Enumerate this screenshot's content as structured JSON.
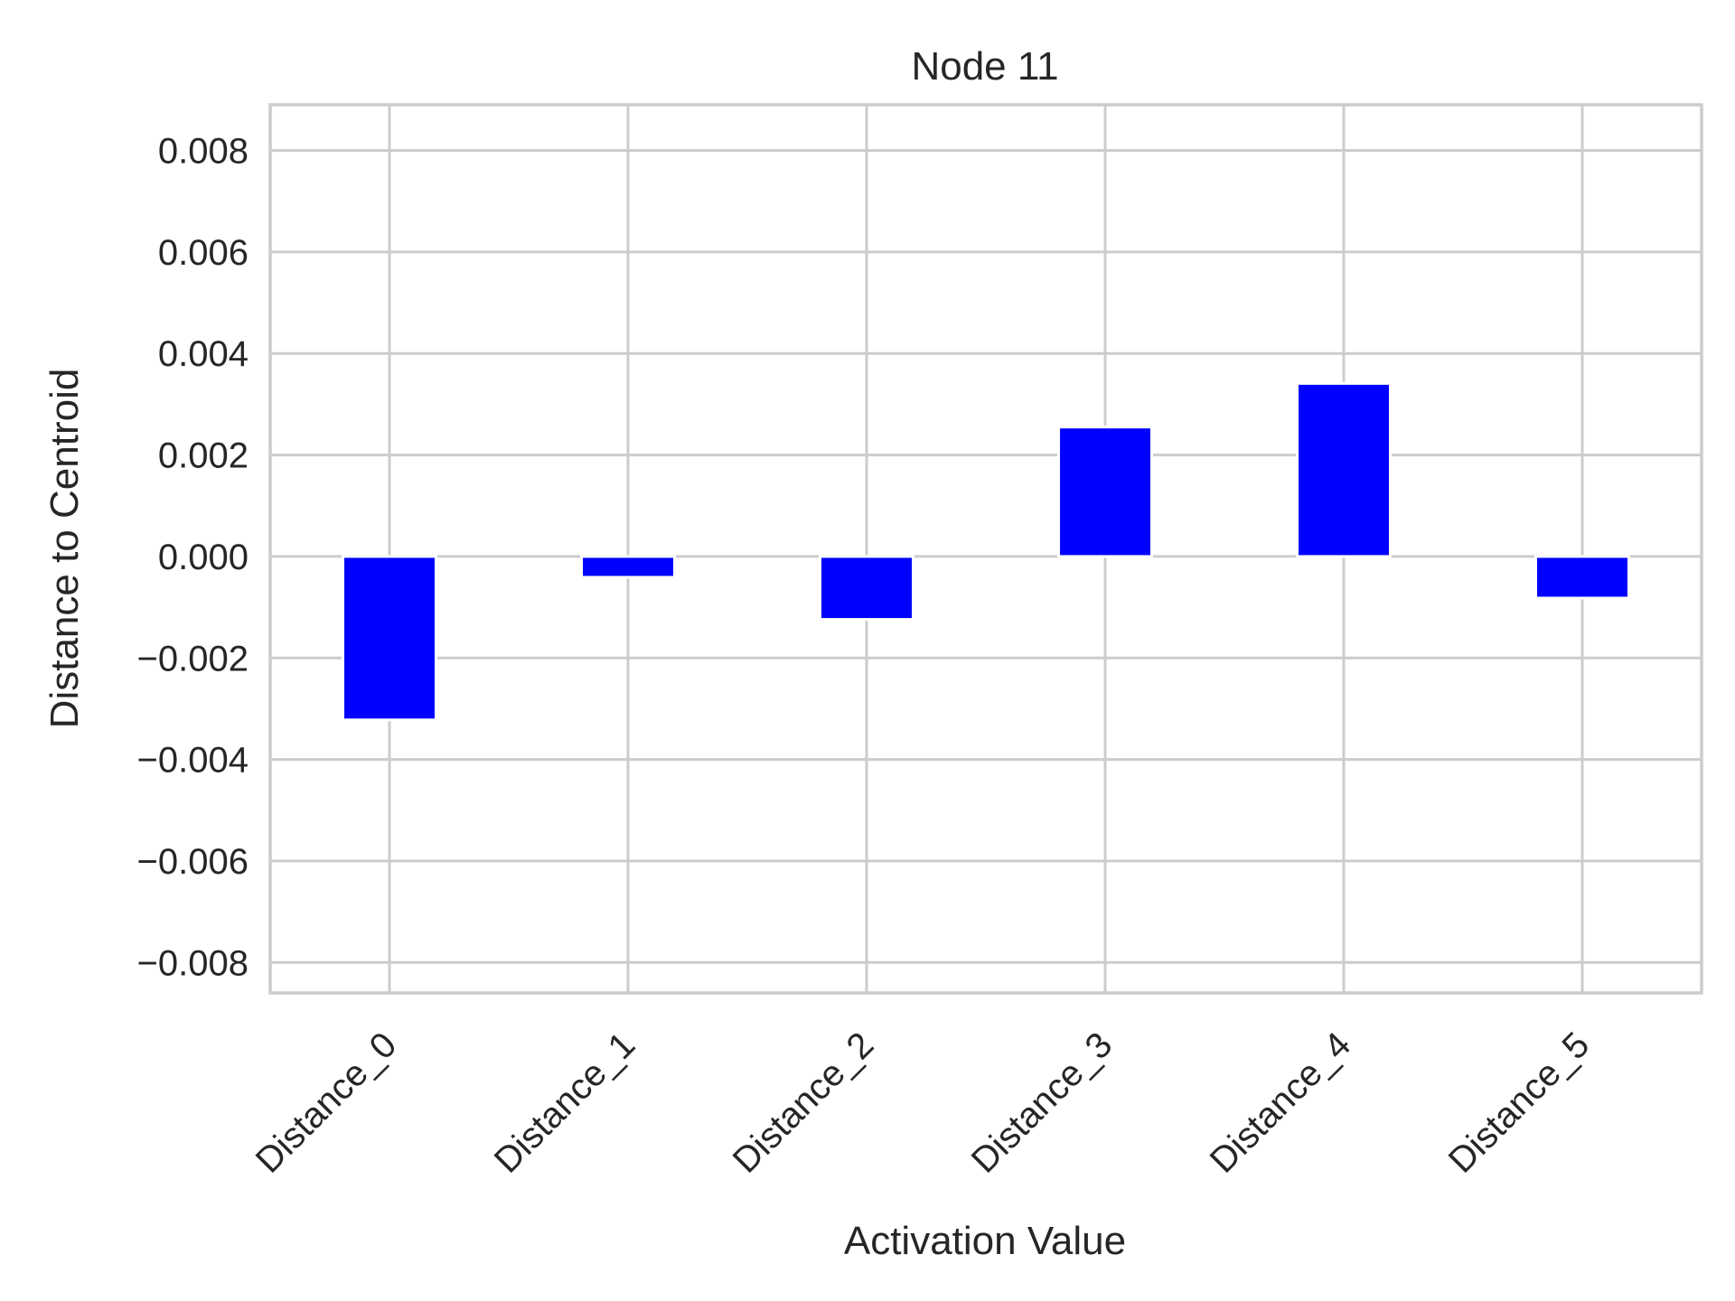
{
  "chart_data": {
    "type": "bar",
    "title": "Node 11",
    "xlabel": "Activation Value",
    "ylabel": "Distance to Centroid",
    "categories": [
      "Distance_0",
      "Distance_1",
      "Distance_2",
      "Distance_3",
      "Distance_4",
      "Distance_5"
    ],
    "values": [
      -0.00322,
      -0.00041,
      -0.00124,
      0.00255,
      0.00341,
      -0.00082
    ],
    "ylim": [
      -0.0086,
      0.0089
    ],
    "yticks": [
      -0.008,
      -0.006,
      -0.004,
      -0.002,
      0.0,
      0.002,
      0.004,
      0.006,
      0.008
    ],
    "ytick_labels": [
      "−0.008",
      "−0.006",
      "−0.004",
      "−0.002",
      "0.000",
      "0.002",
      "0.004",
      "0.006",
      "0.008"
    ],
    "bar_color": "#0000ff",
    "grid": true
  }
}
